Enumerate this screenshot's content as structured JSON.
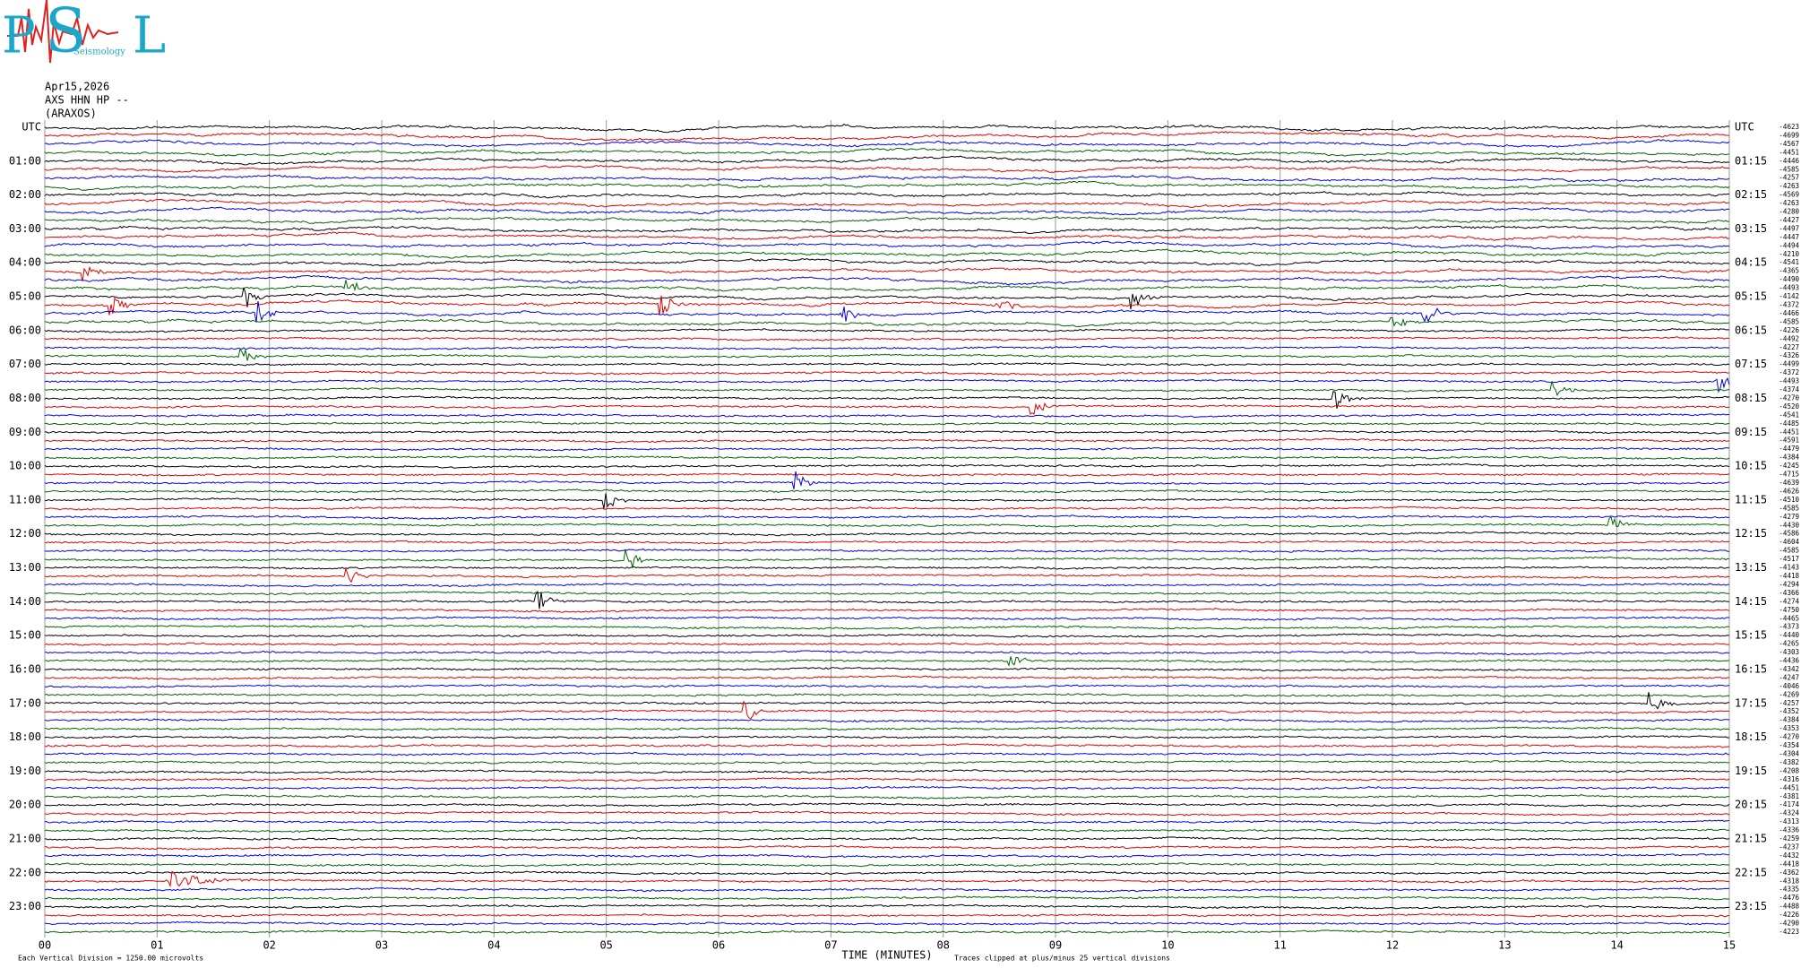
{
  "logo": {
    "letters": [
      "P",
      "S",
      "L"
    ],
    "words": "Seismology"
  },
  "header": {
    "date": "Apr15,2026",
    "station": "AXS HHN HP --",
    "location": "(ARAXOS)"
  },
  "left_labels": [
    "UTC",
    "01:00",
    "02:00",
    "03:00",
    "04:00",
    "05:00",
    "06:00",
    "07:00",
    "08:00",
    "09:00",
    "10:00",
    "11:00",
    "12:00",
    "13:00",
    "14:00",
    "15:00",
    "16:00",
    "17:00",
    "18:00",
    "19:00",
    "20:00",
    "21:00",
    "22:00",
    "23:00"
  ],
  "right_labels": [
    "UTC",
    "01:15",
    "02:15",
    "03:15",
    "04:15",
    "05:15",
    "06:15",
    "07:15",
    "08:15",
    "09:15",
    "10:15",
    "11:15",
    "12:15",
    "13:15",
    "14:15",
    "15:15",
    "16:15",
    "17:15",
    "18:15",
    "19:15",
    "20:15",
    "21:15",
    "22:15",
    "23:15"
  ],
  "trace_offsets": [
    "-4623",
    "-4699",
    "-4567",
    "-4451",
    "-4446",
    "-4585",
    "-4257",
    "-4263",
    "-4569",
    "-4263",
    "-4280",
    "-4427",
    "-4497",
    "-4447",
    "-4494",
    "-4210",
    "-4541",
    "-4365",
    "-4490",
    "-4493",
    "-4142",
    "-4372",
    "-4466",
    "-4585",
    "-4226",
    "-4492",
    "-4227",
    "-4326",
    "-4499",
    "-4372",
    "-4493",
    "-4374",
    "-4270",
    "-4520",
    "-4541",
    "-4485",
    "-4451",
    "-4591",
    "-4479",
    "-4384",
    "-4245",
    "-4715",
    "-4639",
    "-4626",
    "-4510",
    "-4585",
    "-4279",
    "-4430",
    "-4586",
    "-4604",
    "-4585",
    "-4517",
    "-4143",
    "-4418",
    "-4294",
    "-4366",
    "-4274",
    "-4750",
    "-4465",
    "-4373",
    "-4440",
    "-4265",
    "-4303",
    "-4436",
    "-4342",
    "-4247",
    "-4046",
    "-4269",
    "-4257",
    "-4352",
    "-4384",
    "-4353",
    "-4270",
    "-4354",
    "-4304",
    "-4382",
    "-4208",
    "-4316",
    "-4451",
    "-4381",
    "-4174",
    "-4324",
    "-4313",
    "-4336",
    "-4259",
    "-4237",
    "-4432",
    "-4418",
    "-4362",
    "-4318",
    "-4335",
    "-4476",
    "-4488",
    "-4226",
    "-4290",
    "-4223"
  ],
  "x_ticks": [
    "00",
    "01",
    "02",
    "03",
    "04",
    "05",
    "06",
    "07",
    "08",
    "09",
    "10",
    "11",
    "12",
    "13",
    "14",
    "15"
  ],
  "x_label": "TIME (MINUTES)",
  "footer": {
    "scale": "Each Vertical Division = 1250.00 microvolts",
    "clip": "Traces clipped at plus/minus 25 vertical divisions"
  }
}
